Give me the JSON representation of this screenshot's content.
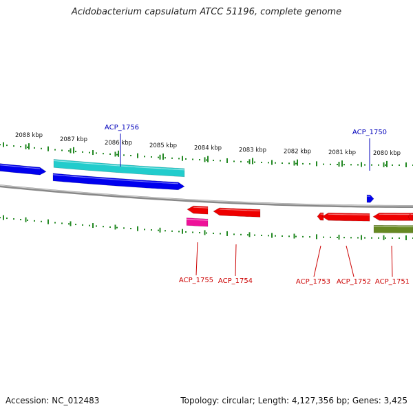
{
  "title": "Acidobacterium capsulatum ATCC 51196, complete genome",
  "accession": "Accession: NC_012483",
  "summary": "Topology: circular; Length: 4,127,356 bp; Genes: 3,425",
  "colors": {
    "forward_gene": "#0000ee",
    "forward_cds": "#22cccc",
    "reverse_gene": "#ee0000",
    "reverse_cds_a": "#ee1199",
    "reverse_cds_b": "#668822",
    "backbone": "#888888",
    "ticks": "#228822",
    "forward_label": "#0000bb",
    "reverse_label": "#cc0000"
  },
  "ticks": [
    "2088 kbp",
    "2087 kbp",
    "2086 kbp",
    "2085 kbp",
    "2084 kbp",
    "2083 kbp",
    "2082 kbp",
    "2081 kbp",
    "2080 kbp"
  ],
  "genes": [
    {
      "label": "ACP_1756",
      "strand": "+"
    },
    {
      "label": "ACP_1750",
      "strand": "+"
    },
    {
      "label": "ACP_1755",
      "strand": "-"
    },
    {
      "label": "ACP_1754",
      "strand": "-"
    },
    {
      "label": "ACP_1753",
      "strand": "-"
    },
    {
      "label": "ACP_1752",
      "strand": "-"
    },
    {
      "label": "ACP_1751",
      "strand": "-"
    }
  ]
}
